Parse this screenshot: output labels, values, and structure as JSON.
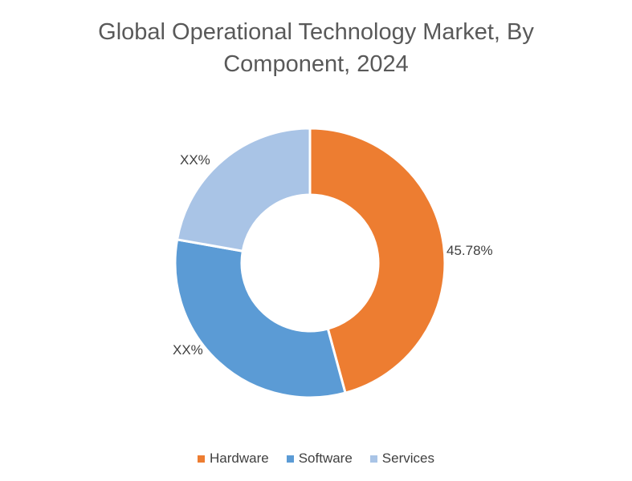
{
  "chart_data": {
    "type": "pie",
    "variant": "donut",
    "title_line1": "Global Operational Technology Market, By",
    "title_line2": "Component, 2024",
    "categories": [
      "Hardware",
      "Software",
      "Services"
    ],
    "values": [
      45.78,
      32.0,
      22.22
    ],
    "data_labels": [
      "45.78%",
      "XX%",
      "XX%"
    ],
    "colors": [
      "#ED7D31",
      "#5B9BD5",
      "#A9C4E6"
    ],
    "legend_position": "bottom"
  }
}
